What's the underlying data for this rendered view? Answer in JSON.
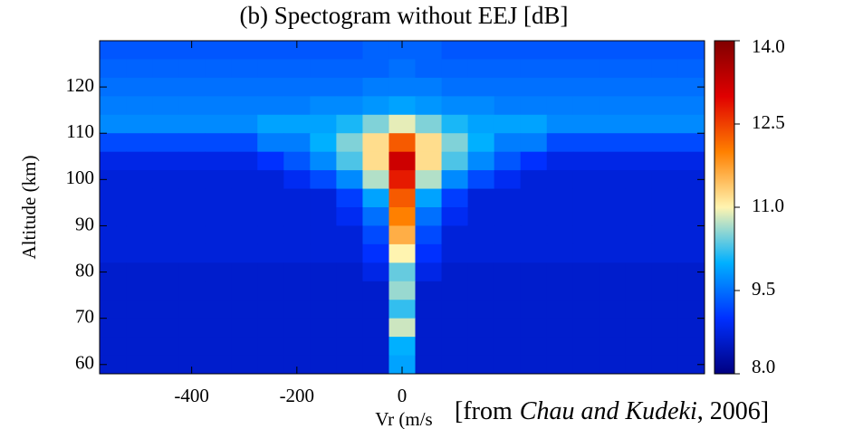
{
  "chart_data": {
    "type": "heatmap",
    "title": "(b) Spectogram without EEJ [dB]",
    "x_label": "Vr (m/s",
    "y_label": "Altitude (km)",
    "citation": {
      "prefix": "[from",
      "authors": "Chau and Kudeki",
      "suffix": ", 2006]"
    },
    "xlim": [
      -575,
      575
    ],
    "ylim": [
      58,
      130
    ],
    "xticks": [
      -400,
      -200,
      0
    ],
    "yticks": [
      60,
      70,
      80,
      90,
      100,
      110,
      120
    ],
    "zlim": [
      8,
      14
    ],
    "zticks": [
      {
        "value": 8,
        "label": "8.0"
      },
      {
        "value": 9.5,
        "label": "9.5"
      },
      {
        "value": 11,
        "label": "11.0"
      },
      {
        "value": 12.5,
        "label": "12.5"
      },
      {
        "value": 14,
        "label": "14.0"
      }
    ],
    "colorscale": [
      "#000080",
      "#0030ff",
      "#00b0ff",
      "#fff4b0",
      "#ff8000",
      "#e00000",
      "#800000"
    ],
    "x": [
      -550,
      -500,
      -450,
      -400,
      -350,
      -300,
      -250,
      -200,
      -150,
      -100,
      -50,
      0,
      50,
      100,
      150,
      200,
      250,
      300,
      350,
      400,
      450,
      500,
      550
    ],
    "y": [
      128,
      124,
      120,
      116,
      112,
      108,
      104,
      100,
      96,
      92,
      88,
      84,
      80,
      76,
      72,
      68,
      64,
      60
    ],
    "z": [
      [
        9.3,
        9.3,
        9.3,
        9.3,
        9.3,
        9.3,
        9.3,
        9.3,
        9.3,
        9.3,
        9.4,
        9.4,
        9.4,
        9.3,
        9.3,
        9.3,
        9.3,
        9.3,
        9.3,
        9.3,
        9.3,
        9.3,
        9.3
      ],
      [
        9.4,
        9.4,
        9.4,
        9.4,
        9.4,
        9.4,
        9.4,
        9.4,
        9.4,
        9.4,
        9.4,
        9.5,
        9.4,
        9.4,
        9.4,
        9.4,
        9.4,
        9.4,
        9.4,
        9.4,
        9.4,
        9.4,
        9.4
      ],
      [
        9.5,
        9.5,
        9.5,
        9.5,
        9.5,
        9.5,
        9.5,
        9.5,
        9.5,
        9.5,
        9.6,
        9.6,
        9.6,
        9.5,
        9.5,
        9.5,
        9.5,
        9.5,
        9.5,
        9.5,
        9.5,
        9.5,
        9.5
      ],
      [
        9.6,
        9.6,
        9.6,
        9.6,
        9.6,
        9.6,
        9.6,
        9.6,
        9.7,
        9.7,
        9.8,
        9.9,
        9.8,
        9.7,
        9.7,
        9.6,
        9.6,
        9.6,
        9.6,
        9.6,
        9.6,
        9.6,
        9.6
      ],
      [
        9.7,
        9.7,
        9.7,
        9.7,
        9.7,
        9.7,
        9.9,
        9.9,
        9.9,
        10.1,
        10.5,
        10.9,
        10.5,
        10.1,
        9.9,
        9.9,
        9.9,
        9.7,
        9.7,
        9.7,
        9.7,
        9.7,
        9.7
      ],
      [
        9.2,
        9.2,
        9.2,
        9.2,
        9.2,
        9.2,
        9.6,
        9.6,
        10.0,
        10.5,
        11.2,
        12.3,
        11.2,
        10.5,
        10.0,
        9.6,
        9.6,
        9.2,
        9.2,
        9.2,
        9.2,
        9.2,
        9.2
      ],
      [
        8.8,
        8.8,
        8.8,
        8.8,
        8.8,
        8.8,
        9.0,
        9.3,
        9.7,
        10.3,
        11.2,
        13.2,
        11.2,
        10.3,
        9.7,
        9.3,
        9.0,
        8.8,
        8.8,
        8.8,
        8.8,
        8.8,
        8.8
      ],
      [
        8.7,
        8.7,
        8.7,
        8.7,
        8.7,
        8.7,
        8.7,
        8.9,
        9.2,
        9.7,
        10.7,
        12.8,
        10.7,
        9.7,
        9.2,
        8.9,
        8.7,
        8.7,
        8.7,
        8.7,
        8.7,
        8.7,
        8.7
      ],
      [
        8.7,
        8.7,
        8.7,
        8.7,
        8.7,
        8.7,
        8.7,
        8.7,
        8.7,
        9.1,
        9.9,
        12.3,
        9.9,
        9.1,
        8.7,
        8.7,
        8.7,
        8.7,
        8.7,
        8.7,
        8.7,
        8.7,
        8.7
      ],
      [
        8.7,
        8.7,
        8.7,
        8.7,
        8.7,
        8.7,
        8.7,
        8.7,
        8.7,
        8.9,
        9.5,
        12.0,
        9.5,
        8.9,
        8.7,
        8.7,
        8.7,
        8.7,
        8.7,
        8.7,
        8.7,
        8.7,
        8.7
      ],
      [
        8.7,
        8.7,
        8.7,
        8.7,
        8.7,
        8.7,
        8.7,
        8.7,
        8.7,
        8.7,
        9.2,
        11.6,
        9.2,
        8.7,
        8.7,
        8.7,
        8.7,
        8.7,
        8.7,
        8.7,
        8.7,
        8.7,
        8.7
      ],
      [
        8.7,
        8.7,
        8.7,
        8.7,
        8.7,
        8.7,
        8.7,
        8.7,
        8.7,
        8.7,
        9.0,
        11.0,
        9.0,
        8.7,
        8.7,
        8.7,
        8.7,
        8.7,
        8.7,
        8.7,
        8.7,
        8.7,
        8.7
      ],
      [
        8.6,
        8.6,
        8.6,
        8.6,
        8.6,
        8.6,
        8.6,
        8.6,
        8.6,
        8.6,
        8.8,
        10.4,
        8.8,
        8.6,
        8.6,
        8.6,
        8.6,
        8.6,
        8.6,
        8.6,
        8.6,
        8.6,
        8.6
      ],
      [
        8.6,
        8.6,
        8.6,
        8.6,
        8.6,
        8.6,
        8.6,
        8.6,
        8.6,
        8.6,
        8.6,
        10.6,
        8.6,
        8.6,
        8.6,
        8.6,
        8.6,
        8.6,
        8.6,
        8.6,
        8.6,
        8.6,
        8.6
      ],
      [
        8.6,
        8.6,
        8.6,
        8.6,
        8.6,
        8.6,
        8.6,
        8.6,
        8.6,
        8.6,
        8.6,
        10.2,
        8.6,
        8.6,
        8.6,
        8.6,
        8.6,
        8.6,
        8.6,
        8.6,
        8.6,
        8.6,
        8.6
      ],
      [
        8.6,
        8.6,
        8.6,
        8.6,
        8.6,
        8.6,
        8.6,
        8.6,
        8.6,
        8.6,
        8.6,
        10.8,
        8.6,
        8.6,
        8.6,
        8.6,
        8.6,
        8.6,
        8.6,
        8.6,
        8.6,
        8.6,
        8.6
      ],
      [
        8.6,
        8.6,
        8.6,
        8.6,
        8.6,
        8.6,
        8.6,
        8.6,
        8.6,
        8.6,
        8.6,
        10.0,
        8.6,
        8.6,
        8.6,
        8.6,
        8.6,
        8.6,
        8.6,
        8.6,
        8.6,
        8.6,
        8.6
      ],
      [
        8.6,
        8.6,
        8.6,
        8.6,
        8.6,
        8.6,
        8.6,
        8.6,
        8.6,
        8.6,
        8.6,
        9.9,
        8.6,
        8.6,
        8.6,
        8.6,
        8.6,
        8.6,
        8.6,
        8.6,
        8.6,
        8.6,
        8.6
      ]
    ]
  }
}
